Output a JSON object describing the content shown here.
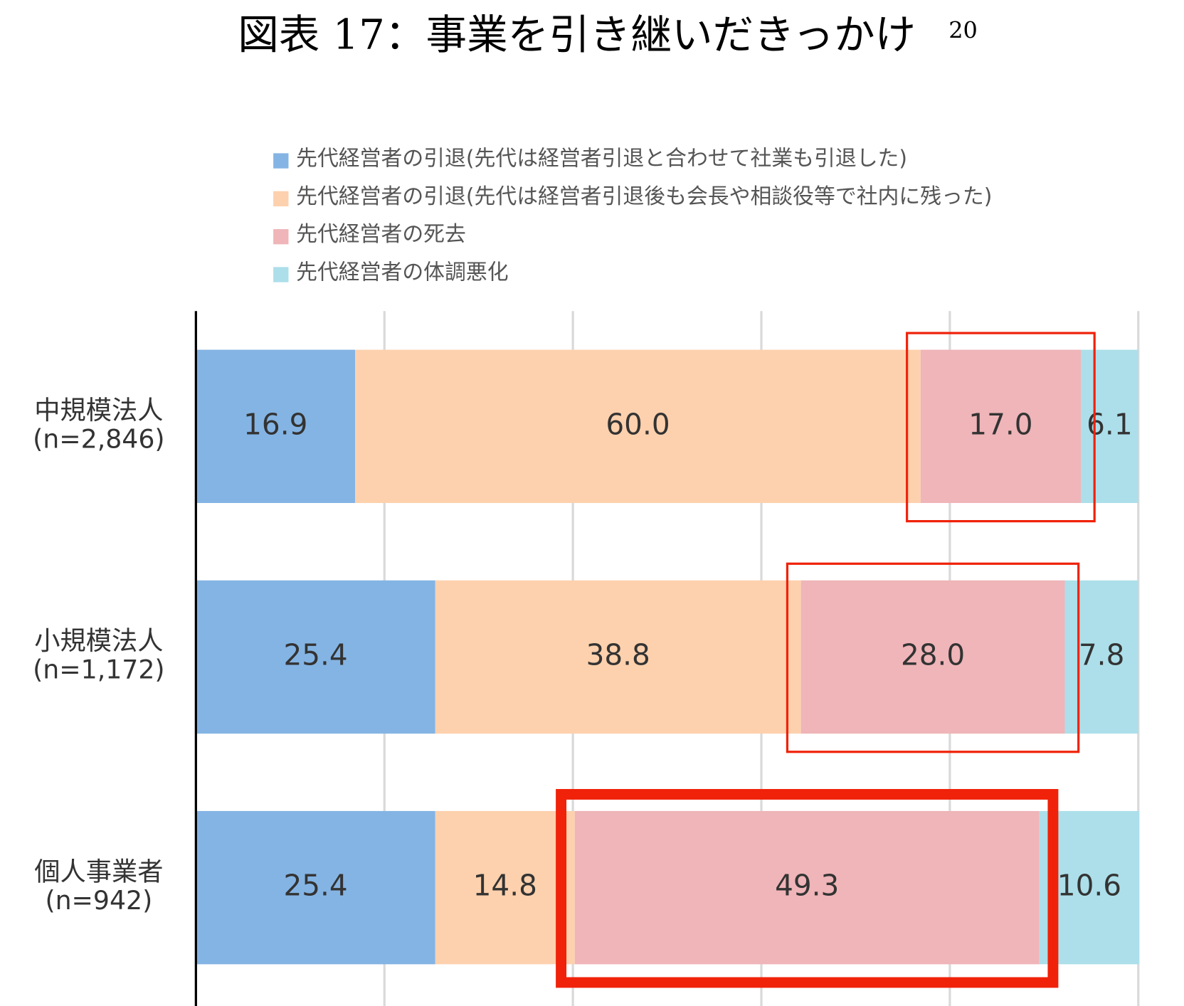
{
  "chart_data": {
    "type": "stacked-bar-horizontal",
    "title": "図表 17：事業を引き継いだきっかけ",
    "title_footnote": "20",
    "categories": [
      [
        "中規模法人",
        "(n=2,846)"
      ],
      [
        "小規模法人",
        "(n=1,172)"
      ],
      [
        "個人事業者",
        "(n=942)"
      ]
    ],
    "series": [
      {
        "name": "先代経営者の引退(先代は経営者引退と合わせて社業も引退した)",
        "color": "#84b4e4",
        "values": [
          16.9,
          25.4,
          25.4
        ],
        "value_labels": [
          "16.9",
          "25.4",
          "25.4"
        ]
      },
      {
        "name": "先代経営者の引退(先代は経営者引退後も会長や相談役等で社内に残った)",
        "color": "#fdd1ad",
        "values": [
          60.0,
          38.8,
          14.8
        ],
        "value_labels": [
          "60.0",
          "38.8",
          "14.8"
        ]
      },
      {
        "name": "先代経営者の死去",
        "color": "#efb5b8",
        "values": [
          17.0,
          28.0,
          49.3
        ],
        "value_labels": [
          "17.0",
          "28.0",
          "49.3"
        ]
      },
      {
        "name": "先代経営者の体調悪化",
        "color": "#acdfea",
        "values": [
          6.1,
          7.8,
          10.6
        ],
        "value_labels": [
          "6.1",
          "7.8",
          "10.6"
        ]
      }
    ],
    "xlim": [
      0,
      100
    ],
    "xticks": [
      0,
      20,
      40,
      60,
      80,
      100
    ],
    "grid": true,
    "legend": "top",
    "highlight_series": 2,
    "highlight_color": "#f0220a"
  }
}
